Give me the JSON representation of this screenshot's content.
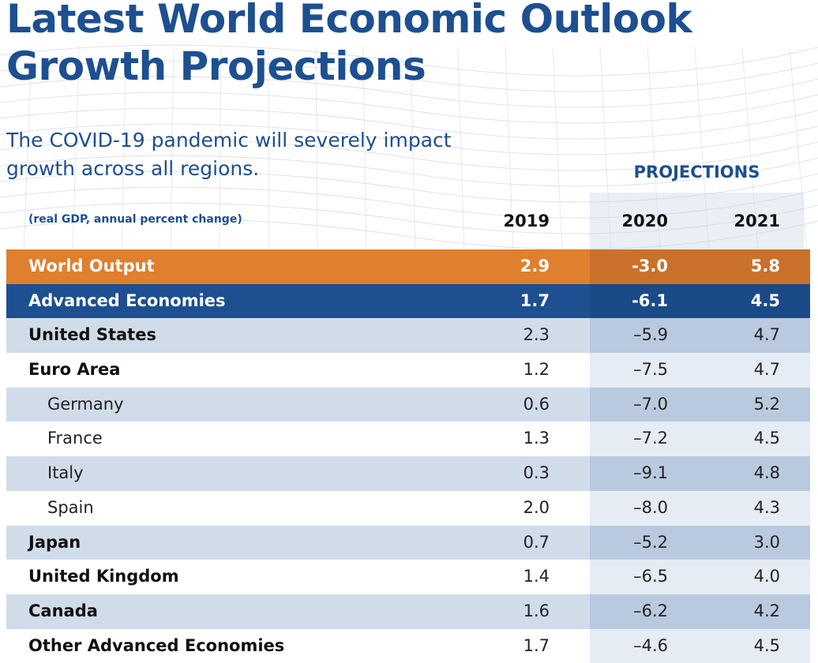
{
  "title_line1": "Latest World Economic Outlook",
  "title_line2": "Growth Projections",
  "subtitle_line1": "The COVID-19 pandemic will severely impact",
  "subtitle_line2": "growth across all regions.",
  "projections_label": "PROJECTIONS",
  "units_label": "(real GDP, annual percent change)",
  "years": [
    "2019",
    "2020",
    "2021"
  ],
  "rows": [
    {
      "label": "World Output",
      "v2019": "2.9",
      "v2020": "-3.0",
      "v2021": "5.8"
    },
    {
      "label": "Advanced Economies",
      "v2019": "1.7",
      "v2020": "-6.1",
      "v2021": "4.5"
    },
    {
      "label": "United States",
      "v2019": "2.3",
      "v2020": "–5.9",
      "v2021": "4.7"
    },
    {
      "label": "Euro Area",
      "v2019": "1.2",
      "v2020": "–7.5",
      "v2021": "4.7"
    },
    {
      "label": "Germany",
      "v2019": "0.6",
      "v2020": "–7.0",
      "v2021": "5.2"
    },
    {
      "label": "France",
      "v2019": "1.3",
      "v2020": "–7.2",
      "v2021": "4.5"
    },
    {
      "label": "Italy",
      "v2019": "0.3",
      "v2020": "–9.1",
      "v2021": "4.8"
    },
    {
      "label": "Spain",
      "v2019": "2.0",
      "v2020": "–8.0",
      "v2021": "4.3"
    },
    {
      "label": "Japan",
      "v2019": "0.7",
      "v2020": "–5.2",
      "v2021": "3.0"
    },
    {
      "label": "United Kingdom",
      "v2019": "1.4",
      "v2020": "–6.5",
      "v2021": "4.0"
    },
    {
      "label": "Canada",
      "v2019": "1.6",
      "v2020": "–6.2",
      "v2021": "4.2"
    },
    {
      "label": "Other Advanced Economies",
      "v2019": "1.7",
      "v2020": "–4.6",
      "v2021": "4.5"
    }
  ],
  "colors": {
    "brand_blue": "#1d4f91",
    "world_orange": "#e07f2d",
    "row_shade": "#d1dcea"
  }
}
